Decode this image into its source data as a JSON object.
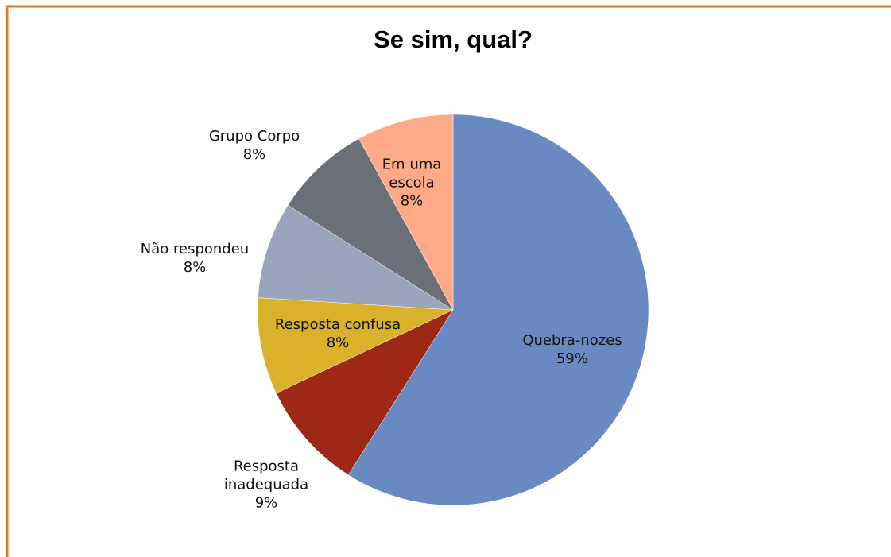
{
  "chart_data": {
    "type": "pie",
    "title": "Se sim, qual?",
    "categories": [
      "Quebra-nozes",
      "Resposta inadequada",
      "Resposta confusa",
      "Não respondeu",
      "Grupo Corpo",
      "Em uma escola"
    ],
    "values": [
      59,
      9,
      8,
      8,
      8,
      8
    ],
    "value_labels": [
      "59%",
      "9%",
      "8%",
      "8%",
      "8%",
      "8%"
    ],
    "colors": [
      "#6889c1",
      "#9c2815",
      "#d9b12a",
      "#9aa4bc",
      "#6b7078",
      "#fdaa89"
    ]
  }
}
